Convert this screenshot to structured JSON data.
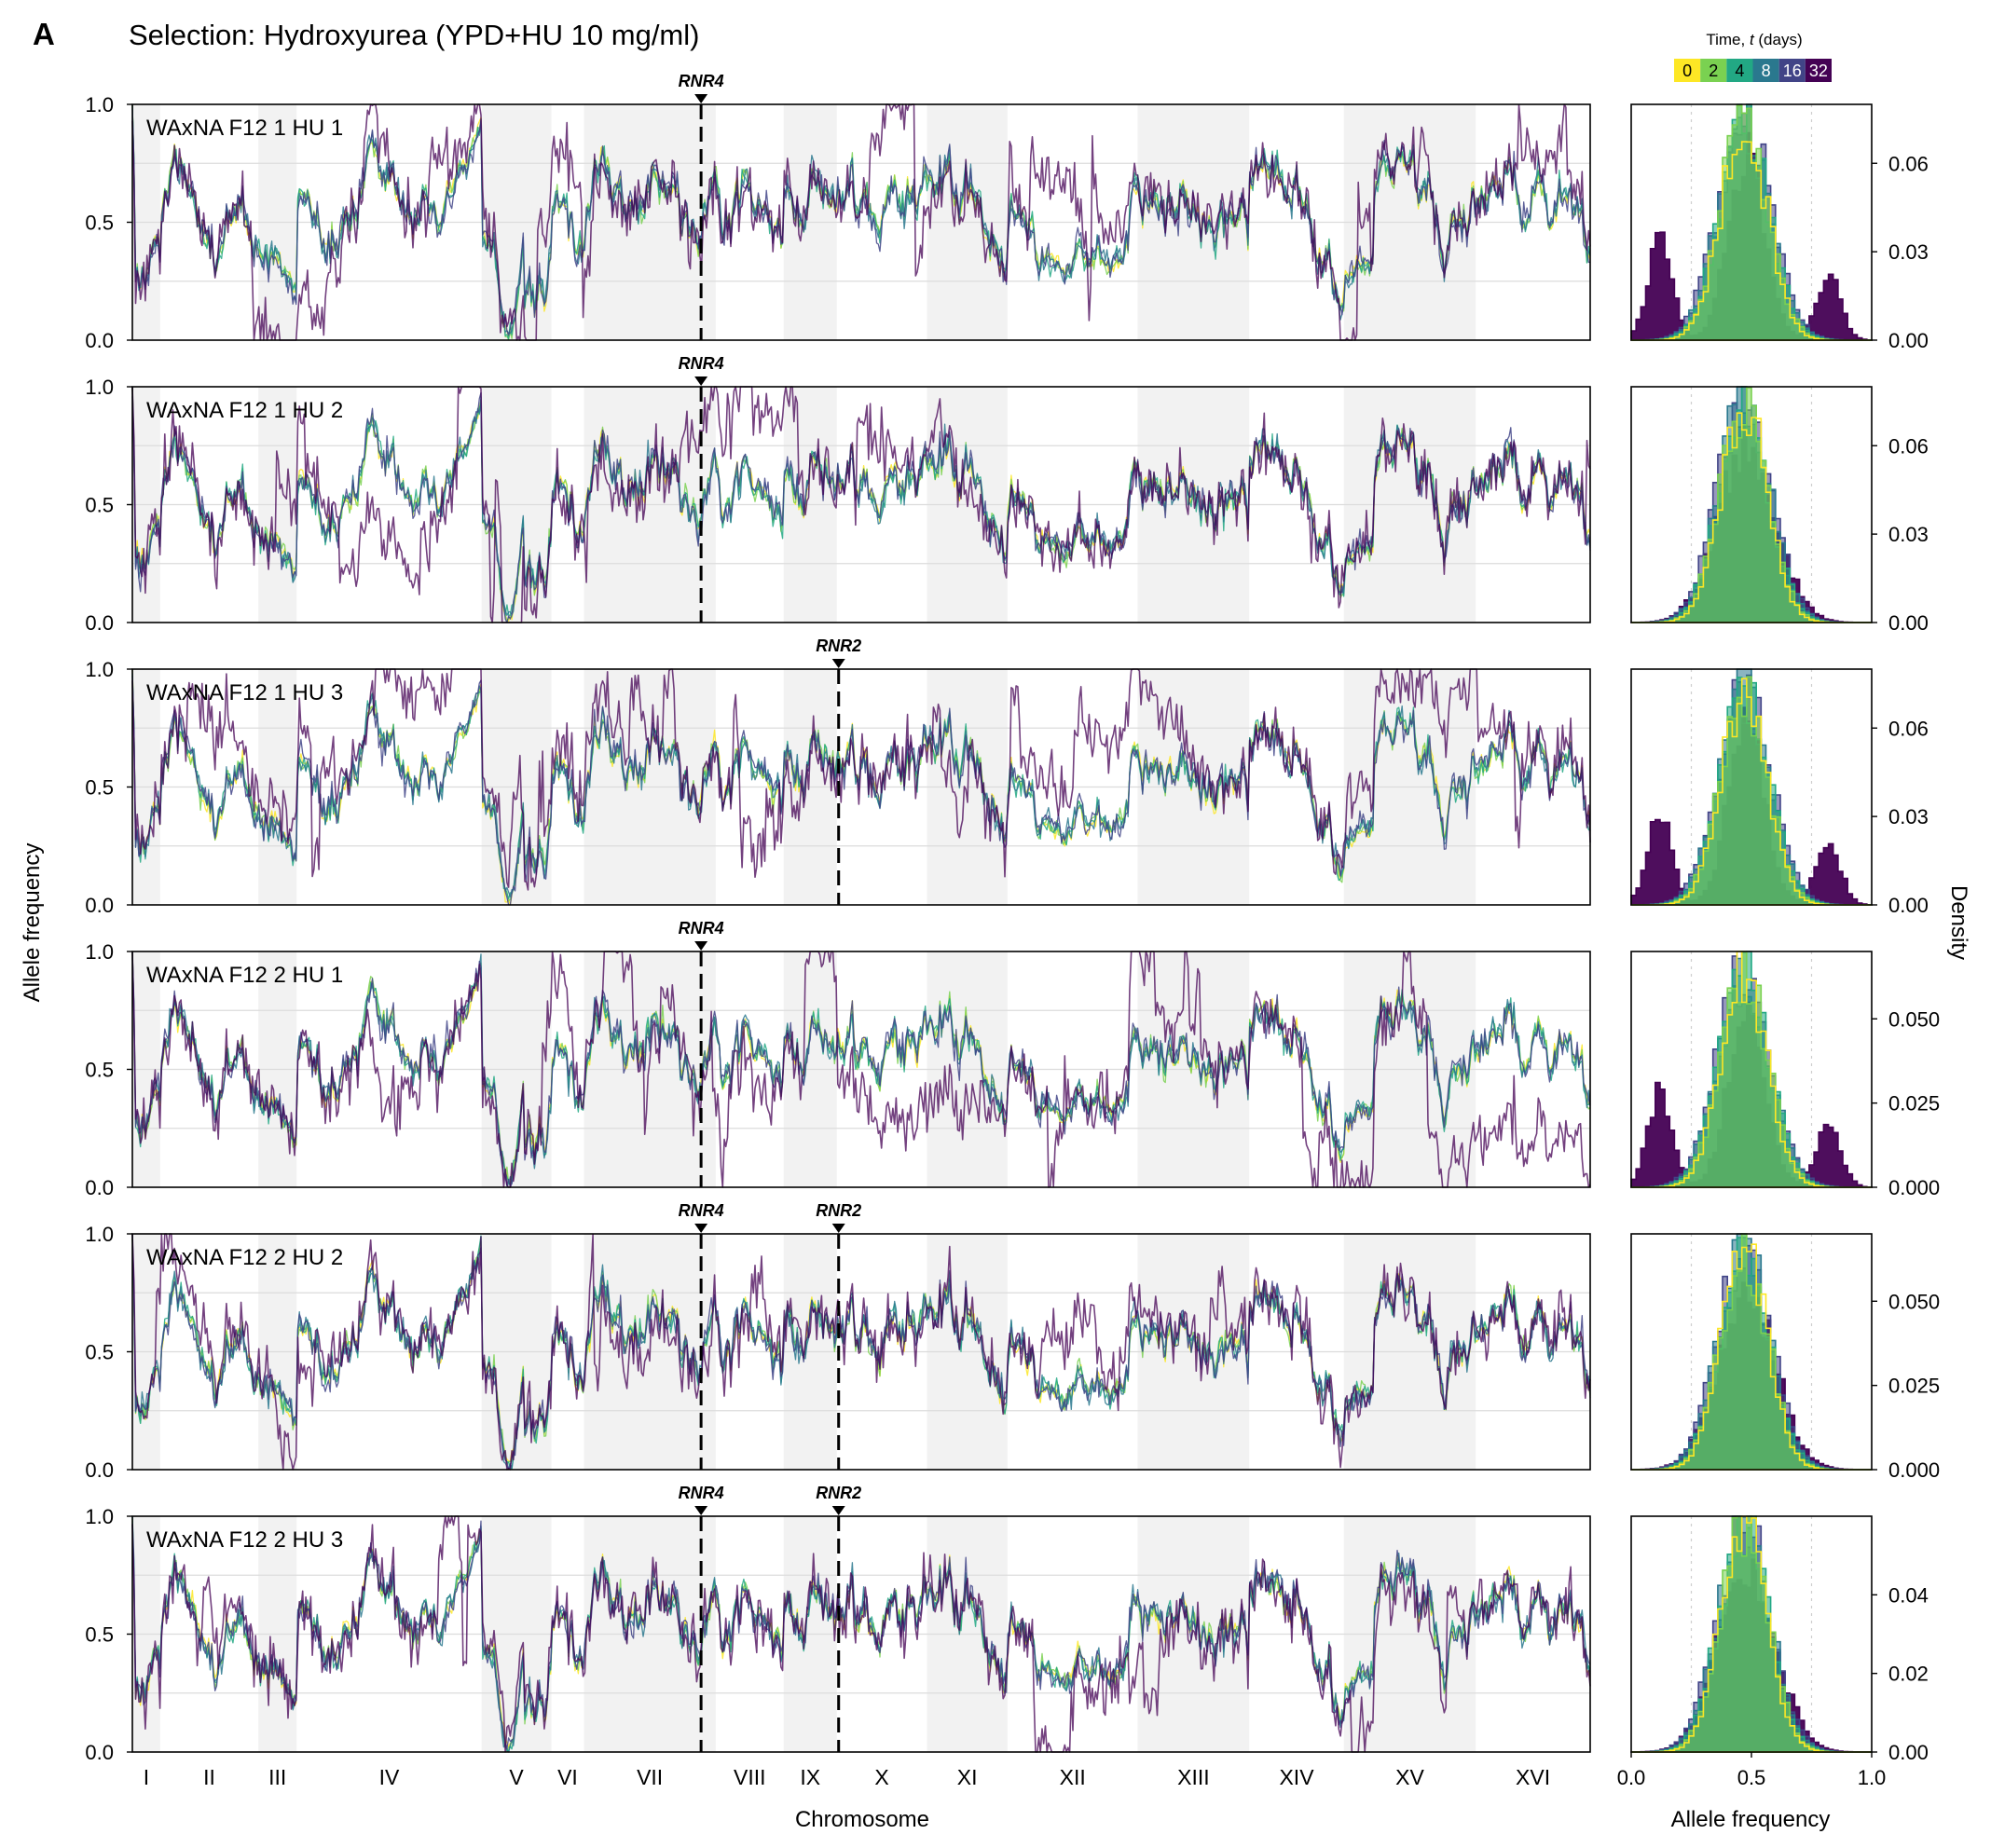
{
  "figure": {
    "panel_letter": "A",
    "title": "Selection: Hydroxyurea (YPD+HU 10 mg/ml)"
  },
  "legend": {
    "title": "Time, t (days)",
    "labels": [
      "0",
      "2",
      "4",
      "8",
      "16",
      "32"
    ],
    "colors": [
      "#fde725",
      "#7ad151",
      "#22a884",
      "#2a788e",
      "#414487",
      "#440154"
    ]
  },
  "chart_data": [
    {
      "type": "line",
      "role": "allele-frequency-tracks",
      "xlabel": "Chromosome",
      "ylabel": "Allele frequency",
      "ylim": [
        0,
        1
      ],
      "yticks": [
        "0.0",
        "0.5",
        "1.0"
      ],
      "chromosomes": [
        "I",
        "II",
        "III",
        "IV",
        "V",
        "VI",
        "VII",
        "VIII",
        "IX",
        "X",
        "XI",
        "XII",
        "XIII",
        "XIV",
        "XV",
        "XVI"
      ],
      "chromosome_lengths_kb": [
        230,
        813,
        317,
        1532,
        577,
        270,
        1091,
        563,
        440,
        746,
        667,
        1078,
        924,
        784,
        1091,
        948
      ],
      "alternating_shading": true,
      "series": [
        "0",
        "2",
        "4",
        "8",
        "16",
        "32"
      ],
      "panels": [
        {
          "label": "WAxNA F12 1 HU 1",
          "genes": [
            {
              "name": "RNR4",
              "chromosome": "VII",
              "position_kb": 970
            }
          ]
        },
        {
          "label": "WAxNA F12 1 HU 2",
          "genes": [
            {
              "name": "RNR4",
              "chromosome": "VII",
              "position_kb": 970
            }
          ]
        },
        {
          "label": "WAxNA F12 1 HU 3",
          "genes": [
            {
              "name": "RNR2",
              "chromosome": "X",
              "position_kb": 15
            }
          ]
        },
        {
          "label": "WAxNA F12 2 HU 1",
          "genes": [
            {
              "name": "RNR4",
              "chromosome": "VII",
              "position_kb": 970
            }
          ]
        },
        {
          "label": "WAxNA F12 2 HU 2",
          "genes": [
            {
              "name": "RNR4",
              "chromosome": "VII",
              "position_kb": 970
            },
            {
              "name": "RNR2",
              "chromosome": "X",
              "position_kb": 15
            }
          ]
        },
        {
          "label": "WAxNA F12 2 HU 3",
          "genes": [
            {
              "name": "RNR4",
              "chromosome": "VII",
              "position_kb": 970
            },
            {
              "name": "RNR2",
              "chromosome": "X",
              "position_kb": 15
            }
          ]
        }
      ]
    },
    {
      "type": "histogram",
      "role": "allele-frequency-density",
      "xlabel": "Allele frequency",
      "ylabel": "Density",
      "xlim": [
        0,
        1
      ],
      "xticks": [
        "0.0",
        "0.5",
        "1.0"
      ],
      "panels": [
        {
          "ylim": [
            0,
            0.08
          ],
          "yticks": [
            "0.00",
            "0.03",
            "0.06"
          ],
          "late_trimodal": true,
          "peak": 0.075
        },
        {
          "ylim": [
            0,
            0.08
          ],
          "yticks": [
            "0.00",
            "0.03",
            "0.06"
          ],
          "late_trimodal": false,
          "peak": 0.075
        },
        {
          "ylim": [
            0,
            0.08
          ],
          "yticks": [
            "0.00",
            "0.03",
            "0.06"
          ],
          "late_trimodal": true,
          "peak": 0.072
        },
        {
          "ylim": [
            0,
            0.07
          ],
          "yticks": [
            "0.000",
            "0.025",
            "0.050"
          ],
          "late_trimodal": true,
          "peak": 0.064
        },
        {
          "ylim": [
            0,
            0.07
          ],
          "yticks": [
            "0.000",
            "0.025",
            "0.050"
          ],
          "late_trimodal": false,
          "peak": 0.065
        },
        {
          "ylim": [
            0,
            0.06
          ],
          "yticks": [
            "0.00",
            "0.02",
            "0.04"
          ],
          "late_trimodal": false,
          "peak": 0.058
        }
      ]
    }
  ]
}
